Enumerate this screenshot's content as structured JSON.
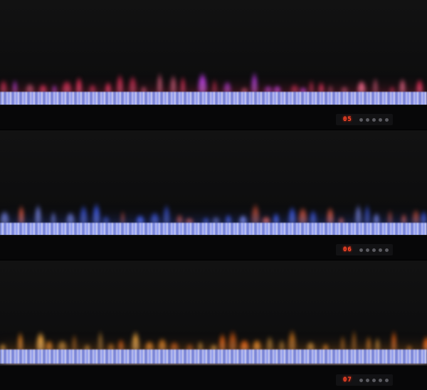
{
  "panels": [
    {
      "setting_display": "05",
      "flame_colors": [
        "#ff3060",
        "#ff6a90",
        "#d040ff"
      ],
      "ember_color": "#b8c0ff"
    },
    {
      "setting_display": "06",
      "flame_colors": [
        "#4060ff",
        "#ff6040",
        "#8090ff"
      ],
      "ember_color": "#b8c0ff"
    },
    {
      "setting_display": "07",
      "flame_colors": [
        "#ff9020",
        "#ffb040",
        "#ff6a10"
      ],
      "ember_color": "#b8c0ff"
    }
  ],
  "control_icons": [
    "power-icon",
    "flame-icon",
    "minus-icon",
    "heat-icon",
    "timer-icon"
  ]
}
